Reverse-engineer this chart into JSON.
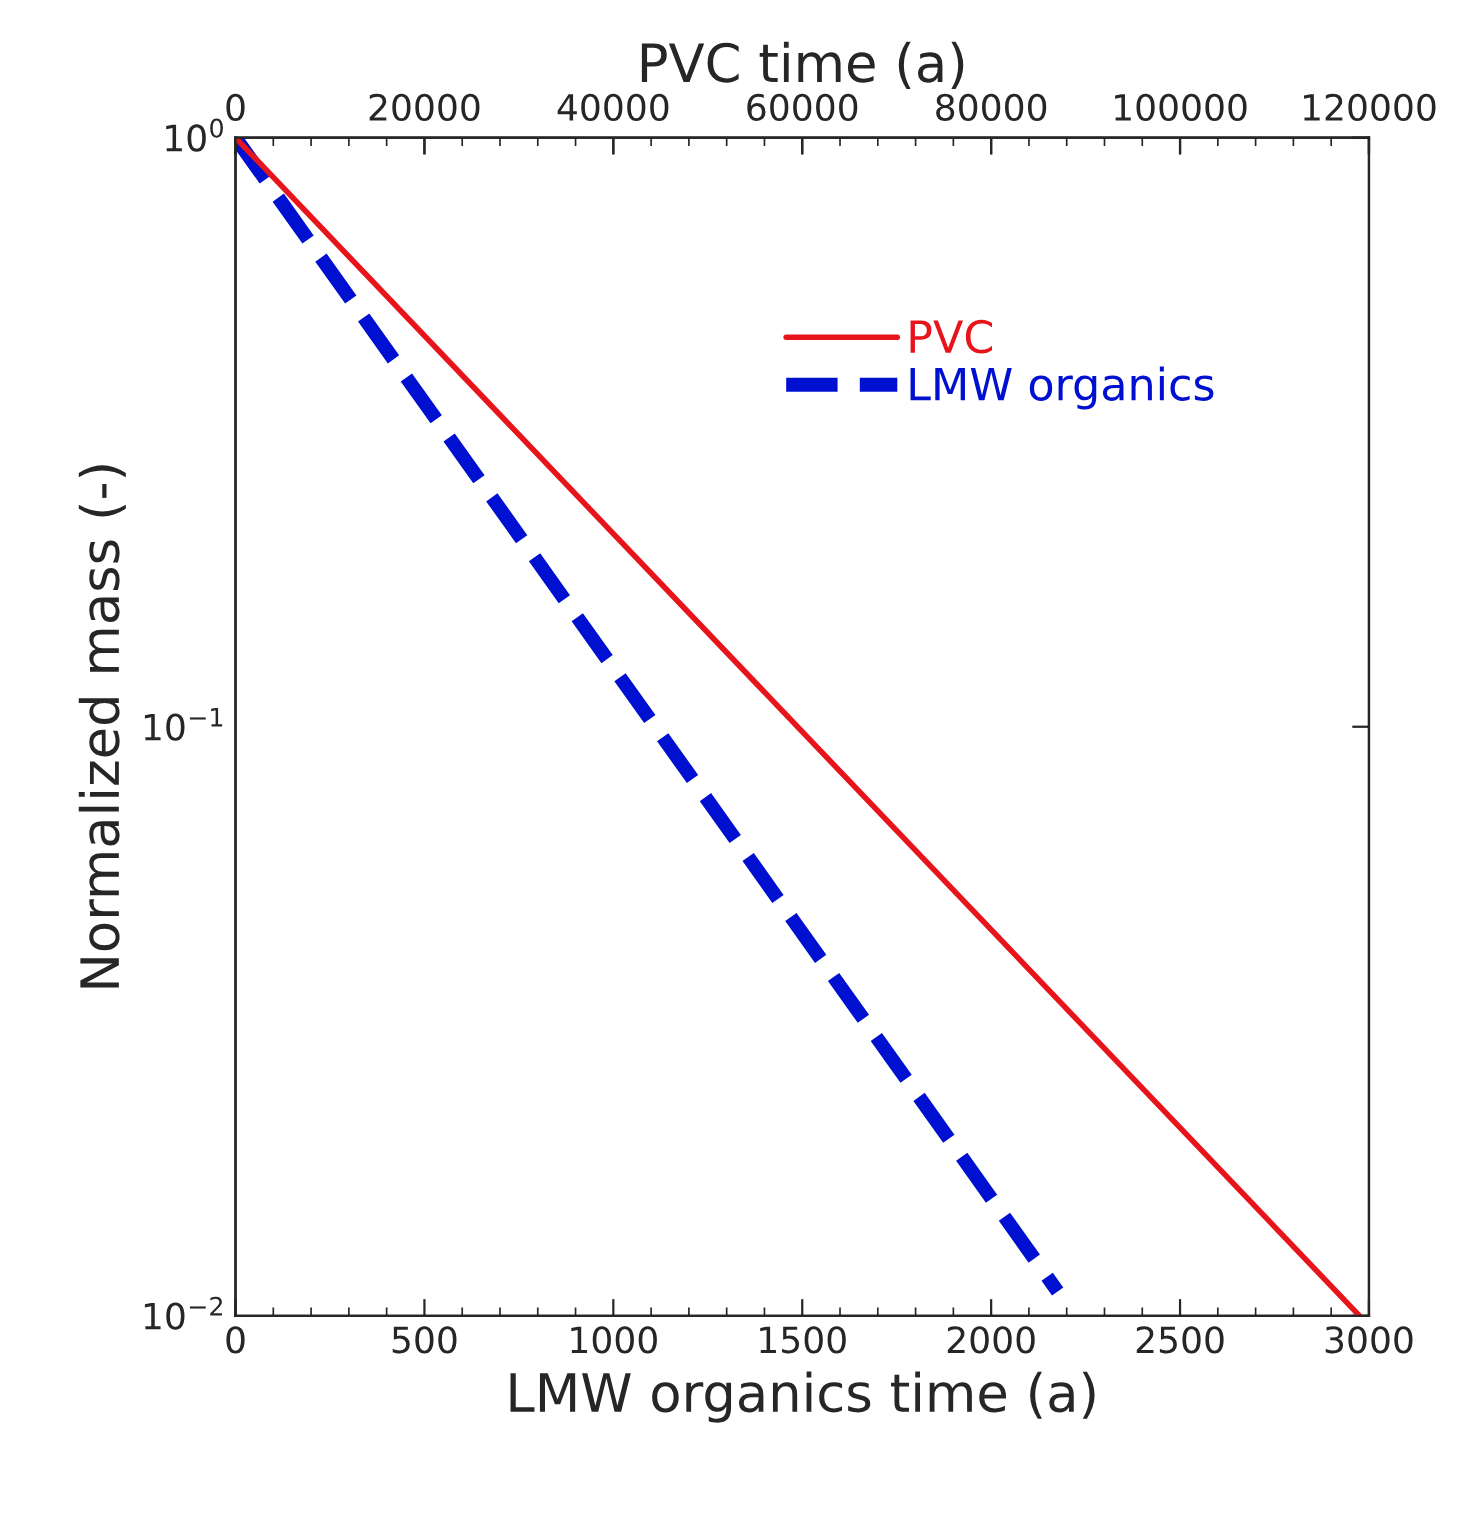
{
  "chart_data": {
    "type": "line",
    "xlabel": "LMW organics time (a)",
    "x2label": "PVC time (a)",
    "ylabel": "Normalized mass (-)",
    "log": "y",
    "grid": false,
    "legend": "top right",
    "xlim": [
      0,
      3000
    ],
    "xticks": [
      0,
      500,
      1000,
      1500,
      2000,
      2500,
      3000
    ],
    "x2lim": [
      0,
      120000
    ],
    "x2ticks": [
      0,
      20000,
      40000,
      60000,
      80000,
      100000,
      120000
    ],
    "ylim": [
      0.01,
      1
    ],
    "yticks": [
      {
        "value": 0.01,
        "label": "10$^{−2}$"
      },
      {
        "value": 0.1,
        "label": "10$^{−1}$"
      },
      {
        "value": 1,
        "label": "10$^{0}$"
      }
    ],
    "series": [
      {
        "name": "PVC",
        "color": "#e8141c",
        "axis": "x2",
        "line_style": "solid",
        "x": [
          0,
          119000
        ],
        "values": [
          1,
          0.01
        ]
      },
      {
        "name": "LMW organics",
        "color": "#0010d0",
        "line_style": "dashed",
        "x": [
          0,
          2176
        ],
        "values": [
          1,
          0.011
        ]
      }
    ]
  }
}
